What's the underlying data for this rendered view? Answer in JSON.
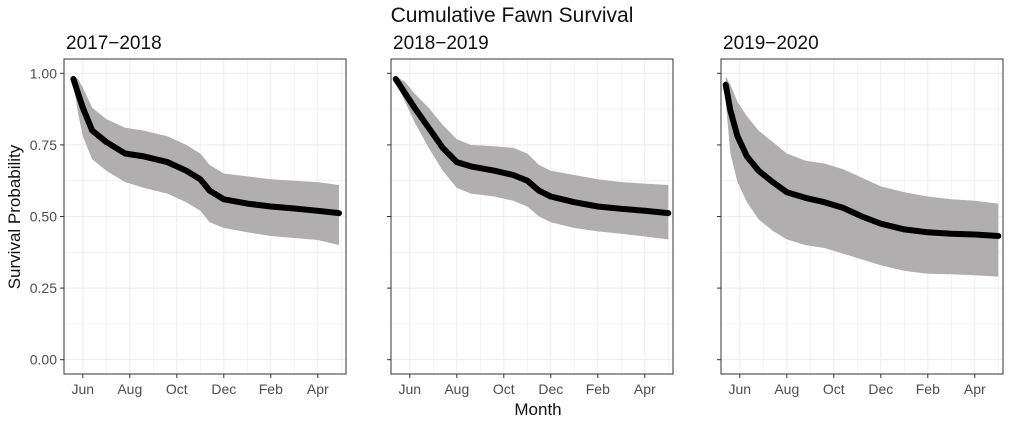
{
  "figure": {
    "title": "Cumulative Fawn Survival",
    "xlabel": "Month",
    "ylabel": "Survival Probability"
  },
  "colors": {
    "line": "#000000",
    "ribbon": "#b0aeae",
    "grid": "#ececec",
    "panel_border": "#333333"
  },
  "chart_data": [
    {
      "type": "line",
      "title": "2017−2018",
      "x_unit": "month index (0 = Jun 1)",
      "xticks": [
        {
          "x": 0,
          "label": "Jun"
        },
        {
          "x": 2,
          "label": "Aug"
        },
        {
          "x": 4,
          "label": "Oct"
        },
        {
          "x": 6,
          "label": "Dec"
        },
        {
          "x": 8,
          "label": "Feb"
        },
        {
          "x": 10,
          "label": "Apr"
        }
      ],
      "yticks": [
        0.0,
        0.25,
        0.5,
        0.75,
        1.0
      ],
      "ytick_labels": [
        "0.00",
        "0.25",
        "0.50",
        "0.75",
        "1.00"
      ],
      "xlim": [
        -0.8,
        11.2
      ],
      "ylim": [
        -0.05,
        1.05
      ],
      "grid": true,
      "series": [
        {
          "x": [
            -0.4,
            -0.2,
            0.0,
            0.4,
            1.0,
            1.8,
            2.6,
            3.6,
            4.4,
            5.0,
            5.4,
            6.0,
            7.0,
            8.0,
            9.0,
            10.0,
            10.9
          ],
          "y": [
            0.98,
            0.93,
            0.88,
            0.8,
            0.76,
            0.72,
            0.71,
            0.69,
            0.66,
            0.63,
            0.59,
            0.56,
            0.545,
            0.535,
            0.528,
            0.52,
            0.512
          ],
          "lower": [
            0.96,
            0.86,
            0.78,
            0.7,
            0.66,
            0.62,
            0.6,
            0.58,
            0.55,
            0.52,
            0.48,
            0.46,
            0.445,
            0.432,
            0.425,
            0.418,
            0.4
          ],
          "upper": [
            0.99,
            0.98,
            0.95,
            0.88,
            0.84,
            0.81,
            0.8,
            0.78,
            0.75,
            0.72,
            0.68,
            0.65,
            0.64,
            0.63,
            0.625,
            0.62,
            0.61
          ]
        }
      ]
    },
    {
      "type": "line",
      "title": "2018−2019",
      "x_unit": "month index (0 = Jun 1)",
      "xticks": [
        {
          "x": 0,
          "label": "Jun"
        },
        {
          "x": 2,
          "label": "Aug"
        },
        {
          "x": 4,
          "label": "Oct"
        },
        {
          "x": 6,
          "label": "Dec"
        },
        {
          "x": 8,
          "label": "Feb"
        },
        {
          "x": 10,
          "label": "Apr"
        }
      ],
      "yticks": [
        0.0,
        0.25,
        0.5,
        0.75,
        1.0
      ],
      "ytick_labels": [
        "",
        "",
        "",
        "",
        ""
      ],
      "xlim": [
        -0.8,
        11.2
      ],
      "ylim": [
        -0.05,
        1.05
      ],
      "grid": true,
      "series": [
        {
          "x": [
            -0.6,
            -0.2,
            0.2,
            0.8,
            1.4,
            2.0,
            2.6,
            3.6,
            4.4,
            5.0,
            5.5,
            6.0,
            7.0,
            8.0,
            9.0,
            10.0,
            11.0
          ],
          "y": [
            0.98,
            0.93,
            0.88,
            0.81,
            0.74,
            0.69,
            0.675,
            0.66,
            0.645,
            0.625,
            0.59,
            0.57,
            0.55,
            0.535,
            0.527,
            0.52,
            0.512
          ],
          "lower": [
            0.97,
            0.9,
            0.83,
            0.74,
            0.66,
            0.6,
            0.58,
            0.57,
            0.555,
            0.535,
            0.5,
            0.48,
            0.46,
            0.448,
            0.44,
            0.43,
            0.42
          ],
          "upper": [
            0.99,
            0.97,
            0.93,
            0.88,
            0.82,
            0.77,
            0.75,
            0.745,
            0.74,
            0.72,
            0.68,
            0.66,
            0.645,
            0.63,
            0.62,
            0.615,
            0.61
          ]
        }
      ]
    },
    {
      "type": "line",
      "title": "2019−2020",
      "x_unit": "month index (0 = Jun 1)",
      "xticks": [
        {
          "x": 0,
          "label": "Jun"
        },
        {
          "x": 2,
          "label": "Aug"
        },
        {
          "x": 4,
          "label": "Oct"
        },
        {
          "x": 6,
          "label": "Dec"
        },
        {
          "x": 8,
          "label": "Feb"
        },
        {
          "x": 10,
          "label": "Apr"
        }
      ],
      "yticks": [
        0.0,
        0.25,
        0.5,
        0.75,
        1.0
      ],
      "ytick_labels": [
        "",
        "",
        "",
        "",
        ""
      ],
      "xlim": [
        -0.8,
        11.2
      ],
      "ylim": [
        -0.05,
        1.05
      ],
      "grid": true,
      "series": [
        {
          "x": [
            -0.6,
            -0.4,
            -0.1,
            0.3,
            0.8,
            1.4,
            2.0,
            2.8,
            3.6,
            4.4,
            5.2,
            6.0,
            7.0,
            8.0,
            9.0,
            10.0,
            11.0
          ],
          "y": [
            0.96,
            0.87,
            0.78,
            0.71,
            0.66,
            0.62,
            0.585,
            0.565,
            0.55,
            0.53,
            0.5,
            0.475,
            0.455,
            0.445,
            0.44,
            0.437,
            0.432
          ],
          "lower": [
            0.9,
            0.72,
            0.62,
            0.55,
            0.49,
            0.45,
            0.42,
            0.4,
            0.39,
            0.37,
            0.35,
            0.33,
            0.31,
            0.3,
            0.298,
            0.295,
            0.29
          ],
          "upper": [
            0.99,
            0.96,
            0.9,
            0.85,
            0.8,
            0.76,
            0.72,
            0.695,
            0.685,
            0.665,
            0.635,
            0.605,
            0.585,
            0.57,
            0.56,
            0.555,
            0.545
          ]
        }
      ]
    }
  ]
}
